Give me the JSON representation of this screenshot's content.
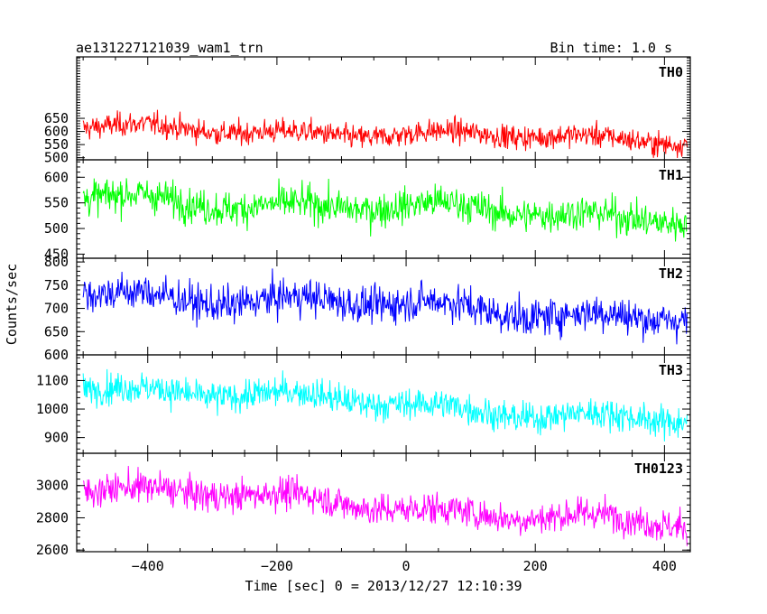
{
  "header": {
    "title": "ae131227121039_wam1_trn",
    "bin_time": "Bin time: 1.0 s"
  },
  "ylabel": "Counts/sec",
  "xlabel": "Time [sec] 0 = 2013/12/27 12:10:39",
  "chart_data": {
    "type": "line",
    "x_range": [
      -510,
      440
    ],
    "data_x_range": [
      -500,
      435
    ],
    "bin_time_s": 1.0,
    "x_ticks": [
      -400,
      -200,
      0,
      200,
      400
    ],
    "x_tick_labels": [
      "−400",
      "−200",
      "0",
      "200",
      "400"
    ],
    "grid": false,
    "panels": [
      {
        "name": "TH0",
        "color": "#ff0000",
        "ylim": [
          492,
          884
        ],
        "yticks": [
          500,
          550,
          600,
          650
        ],
        "trend": [
          615,
          568
        ],
        "noise_sd": 32,
        "y_range_observed": [
          495,
          880
        ]
      },
      {
        "name": "TH1",
        "color": "#00ff00",
        "ylim": [
          442,
          634
        ],
        "yticks": [
          450,
          500,
          550,
          600
        ],
        "trend": [
          560,
          522
        ],
        "noise_sd": 24,
        "y_range_observed": [
          450,
          630
        ]
      },
      {
        "name": "TH2",
        "color": "#0000ff",
        "ylim": [
          600,
          808
        ],
        "yticks": [
          600,
          650,
          700,
          750,
          800
        ],
        "trend": [
          735,
          680
        ],
        "noise_sd": 28,
        "y_range_observed": [
          602,
          805
        ]
      },
      {
        "name": "TH3",
        "color": "#00ffff",
        "ylim": [
          845,
          1190
        ],
        "yticks": [
          900,
          1000,
          1100
        ],
        "trend": [
          1085,
          955
        ],
        "noise_sd": 38,
        "y_range_observed": [
          870,
          1180
        ]
      },
      {
        "name": "TH0123",
        "color": "#ff00ff",
        "ylim": [
          2590,
          3200
        ],
        "yticks": [
          2600,
          2800,
          3000
        ],
        "trend": [
          3000,
          2750
        ],
        "noise_sd": 70,
        "y_range_observed": [
          2600,
          3190
        ]
      }
    ]
  }
}
